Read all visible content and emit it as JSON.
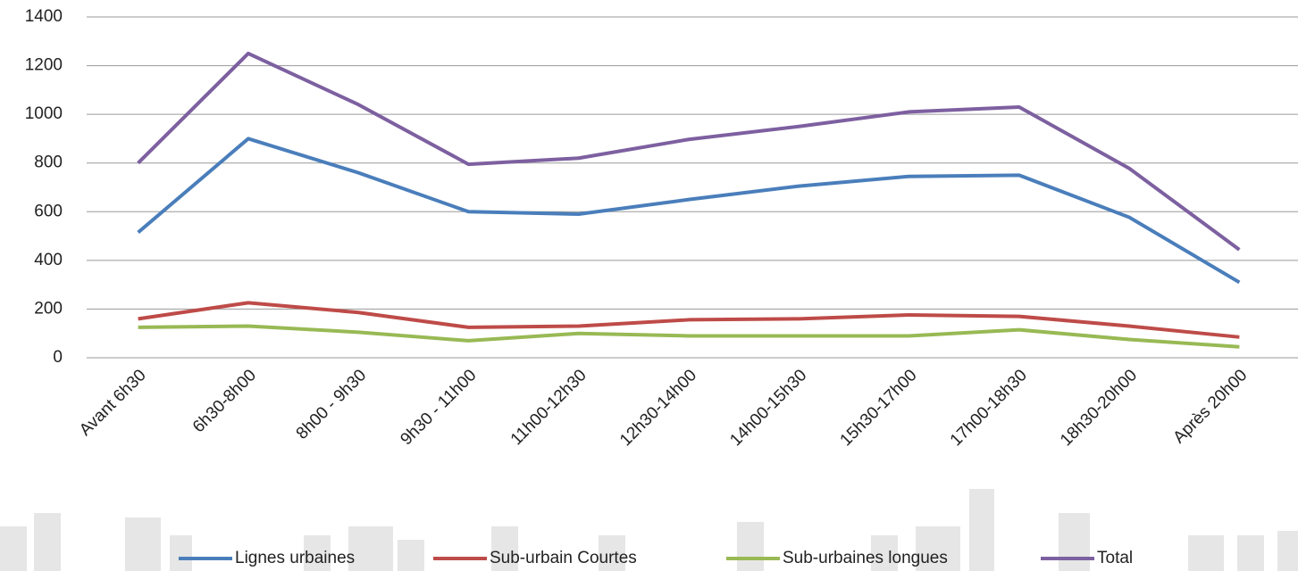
{
  "chart_data": {
    "type": "line",
    "categories": [
      "Avant 6h30",
      "6h30-8h00",
      "8h00 - 9h30",
      "9h30 - 11h00",
      "11h00-12h30",
      "12h30-14h00",
      "14h00-15h30",
      "15h30-17h00",
      "17h00-18h30",
      "18h30-20h00",
      "Après 20h00"
    ],
    "series": [
      {
        "name": "Lignes urbaines",
        "color": "#4a7ebb",
        "values": [
          515,
          900,
          760,
          600,
          590,
          650,
          705,
          745,
          750,
          577,
          310
        ]
      },
      {
        "name": "Sub-urbain Courtes",
        "color": "#be4b48",
        "values": [
          160,
          226,
          186,
          125,
          130,
          156,
          160,
          176,
          170,
          130,
          85
        ]
      },
      {
        "name": "Sub-urbaines longues",
        "color": "#98b954",
        "values": [
          125,
          130,
          105,
          70,
          100,
          90,
          90,
          90,
          115,
          75,
          45
        ]
      },
      {
        "name": "Total",
        "color": "#7d60a0",
        "values": [
          800,
          1250,
          1040,
          795,
          820,
          897,
          950,
          1010,
          1030,
          778,
          444
        ]
      }
    ],
    "ylim": [
      0,
      1400
    ],
    "yticks": [
      0,
      200,
      400,
      600,
      800,
      1000,
      1200,
      1400
    ],
    "grid": true,
    "legend": "bottom"
  }
}
